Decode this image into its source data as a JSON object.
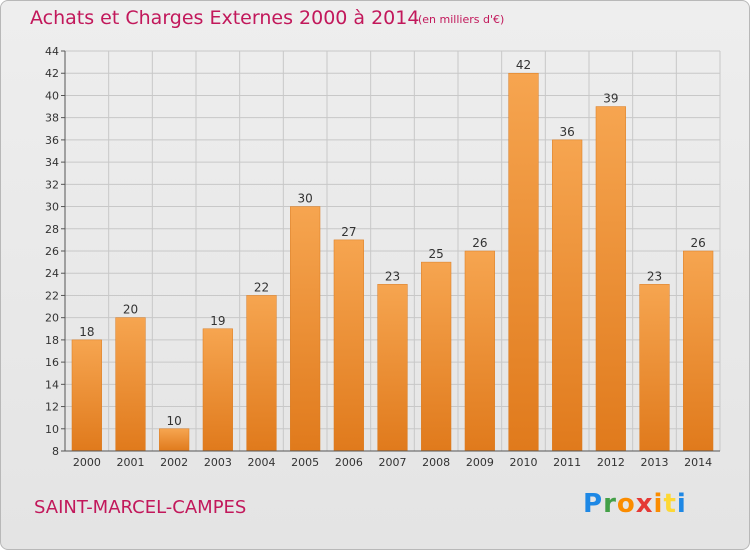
{
  "chart_data": {
    "type": "bar",
    "title": "Achats et Charges Externes 2000 à 2014",
    "subtitle": "(en milliers d'€)",
    "categories": [
      "2000",
      "2001",
      "2002",
      "2003",
      "2004",
      "2005",
      "2006",
      "2007",
      "2008",
      "2009",
      "2010",
      "2011",
      "2012",
      "2013",
      "2014"
    ],
    "values": [
      18,
      20,
      10,
      19,
      22,
      30,
      27,
      23,
      25,
      26,
      42,
      36,
      39,
      23,
      26
    ],
    "ylim": [
      8,
      44
    ],
    "yticks": [
      8,
      10,
      12,
      14,
      16,
      18,
      20,
      22,
      24,
      26,
      28,
      30,
      32,
      34,
      36,
      38,
      40,
      42,
      44
    ],
    "grid": true,
    "bar_color_top": "#f6a550",
    "bar_color_bottom": "#e07a1c",
    "xlabel": "",
    "ylabel": ""
  },
  "place_name": "SAINT-MARCEL-CAMPES",
  "logo_text": "Proxiti",
  "colors": {
    "accent": "#c2185b",
    "grid": "#c8c8c8"
  }
}
